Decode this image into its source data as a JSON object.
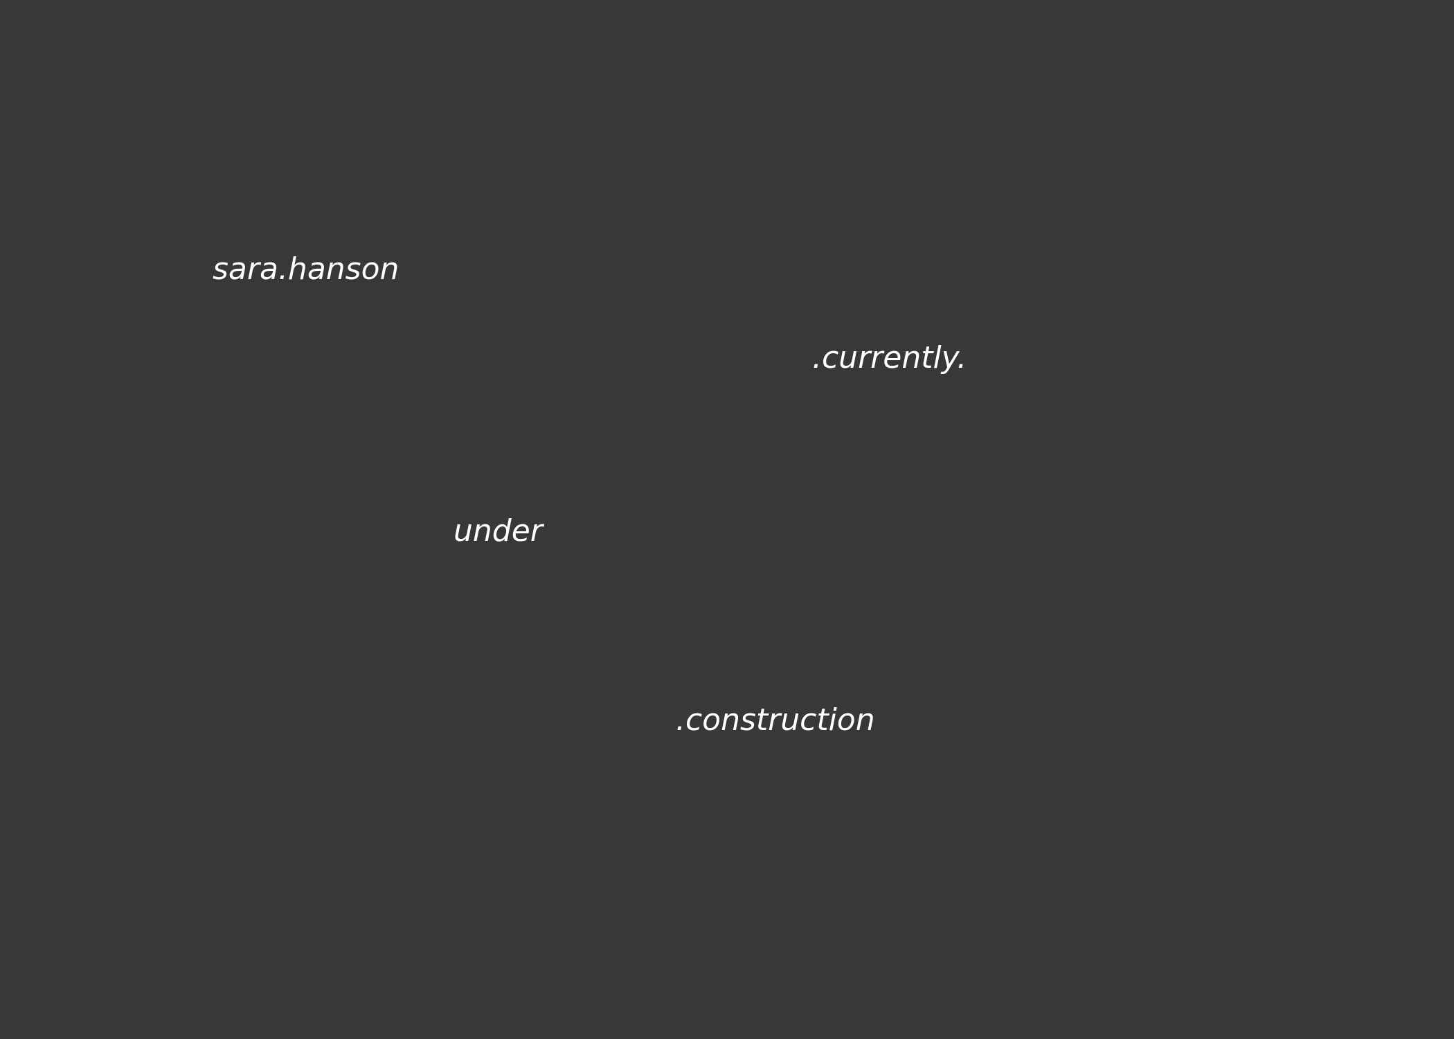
{
  "site": {
    "name": "sara.hanson"
  },
  "message": {
    "line1": ".currently.",
    "line2": "under",
    "line3": ".construction"
  },
  "colors": {
    "background": "#373837",
    "text": "#ffffff"
  }
}
